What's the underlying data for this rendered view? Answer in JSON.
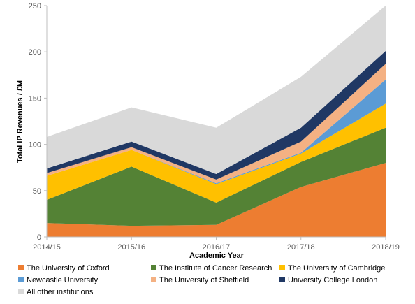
{
  "chart_data": {
    "type": "area",
    "stacked": true,
    "title": "",
    "xlabel": "Academic Year",
    "ylabel": "Total IP Revenues / £M",
    "x": [
      "2014/15",
      "2015/16",
      "2016/17",
      "2017/18",
      "2018/19"
    ],
    "ylim": [
      0,
      250
    ],
    "yticks": [
      0,
      50,
      100,
      150,
      200,
      250
    ],
    "grid": false,
    "legend_position": "bottom",
    "series": [
      {
        "name": "The University of Oxford",
        "color": "#ED7D31",
        "values": [
          15,
          12,
          13,
          54,
          80
        ]
      },
      {
        "name": "The Institute of Cancer Research",
        "color": "#548235",
        "values": [
          25,
          64,
          24,
          27,
          38
        ]
      },
      {
        "name": "The University of Cambridge",
        "color": "#FFC000",
        "values": [
          26,
          18,
          20,
          9,
          26
        ]
      },
      {
        "name": "Newcastle University",
        "color": "#5B9BD5",
        "values": [
          0,
          0,
          1,
          1,
          26
        ]
      },
      {
        "name": "The University of Sheffield",
        "color": "#F4B183",
        "values": [
          3,
          3,
          4,
          12,
          17
        ]
      },
      {
        "name": "University College London",
        "color": "#203864",
        "values": [
          5,
          6,
          6,
          15,
          14
        ]
      },
      {
        "name": "All other institutions",
        "color": "#D9D9D9",
        "values": [
          34,
          37,
          50,
          55,
          49
        ]
      }
    ]
  }
}
